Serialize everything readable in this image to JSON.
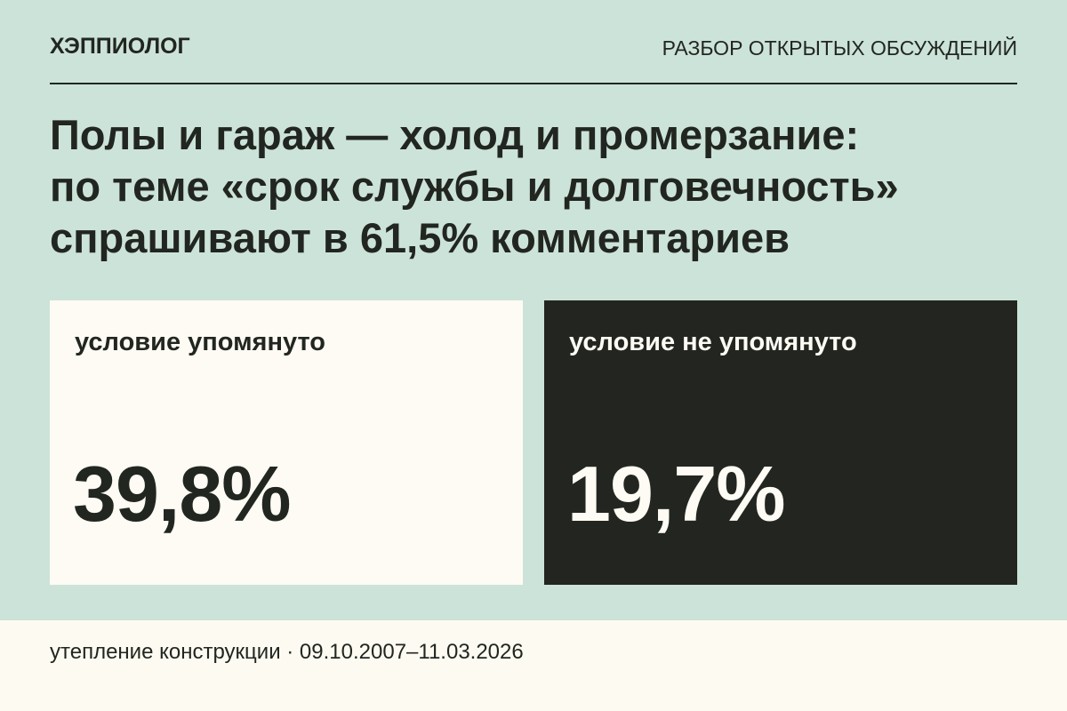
{
  "header": {
    "brand": "ХЭППИОЛОГ",
    "section": "РАЗБОР ОТКРЫТЫХ ОБСУЖДЕНИЙ"
  },
  "headline": {
    "lines": [
      "Полы и гараж — холод и промерзание:",
      "по теме «срок службы и долговечность»",
      "спрашивают в 61,5% комментариев"
    ]
  },
  "cards": [
    {
      "label": "условие упомянуто",
      "value": "39,8%"
    },
    {
      "label": "условие не упомянуто",
      "value": "19,7%"
    }
  ],
  "footer": {
    "text": "утепление конструкции · 09.10.2007–11.03.2026"
  },
  "colors": {
    "background": "#cce3d9",
    "ink": "#222620",
    "card_light": "#fdfbf3",
    "card_dark": "#232620",
    "footer_bg": "#fdfbf1"
  }
}
